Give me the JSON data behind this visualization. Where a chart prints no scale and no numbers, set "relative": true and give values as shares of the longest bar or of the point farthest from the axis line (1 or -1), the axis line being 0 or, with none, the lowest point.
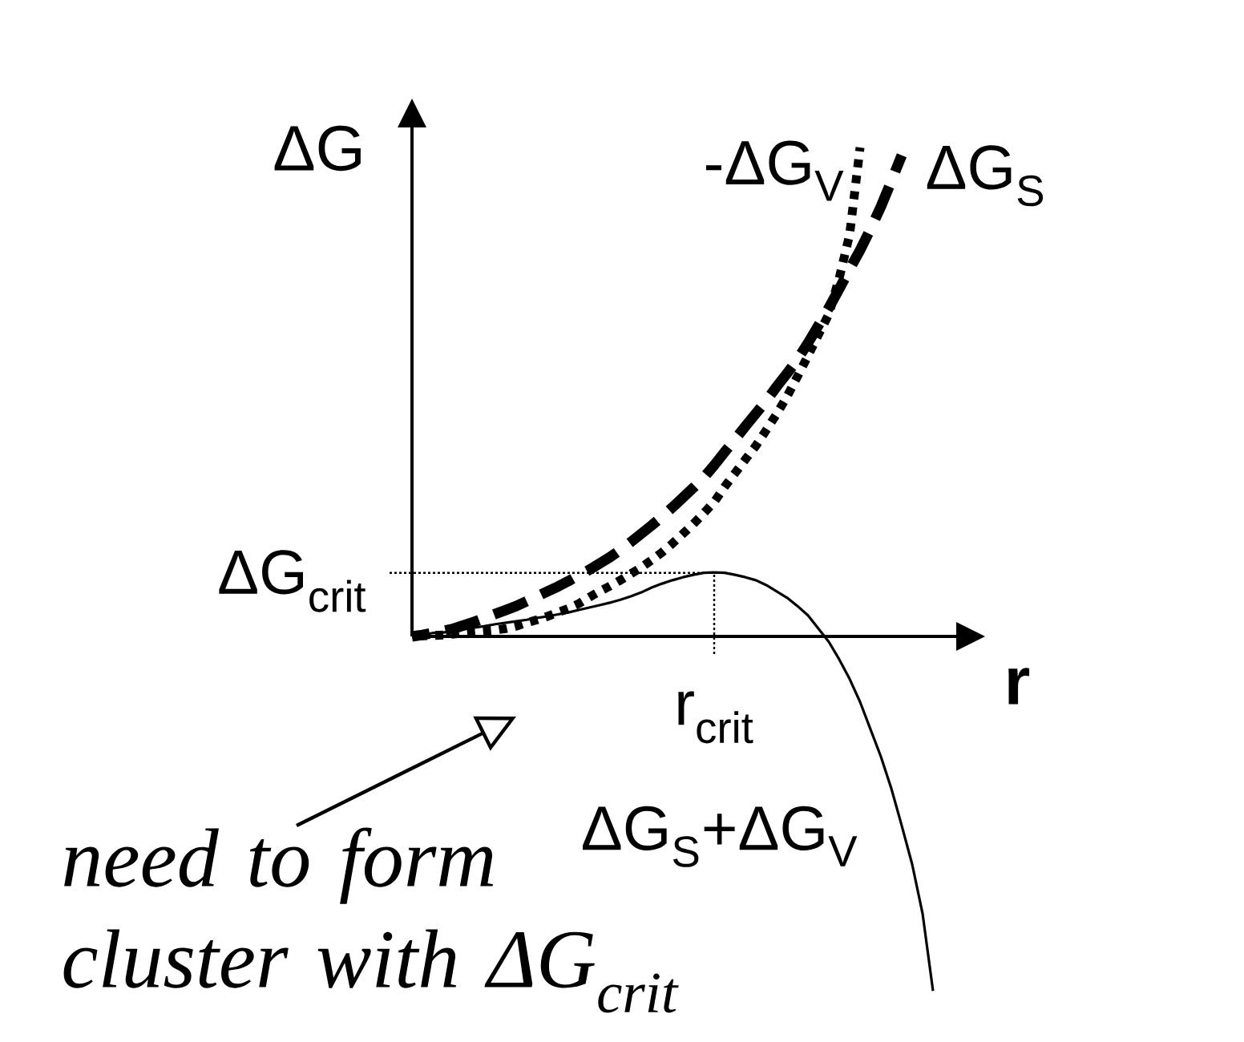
{
  "chart_data": {
    "type": "line",
    "relative": true,
    "ylabel": "ΔG",
    "xlabel": "r",
    "marker": "none",
    "categories": [
      null,
      null,
      null,
      null,
      null,
      null,
      null,
      null,
      null,
      null,
      null,
      null,
      null,
      null,
      null,
      null,
      null,
      null,
      null,
      null,
      null,
      null,
      null,
      null,
      null,
      null,
      null,
      null,
      null,
      null,
      null,
      null,
      null,
      null,
      null,
      null,
      null,
      null,
      null,
      null,
      null,
      null,
      null,
      null,
      null,
      null,
      null,
      null,
      null,
      null,
      null
    ],
    "series": [
      {
        "name": "-ΔG$_{V}$",
        "color": "#000000",
        "line_style": "dotted",
        "values": [
          0,
          0.001,
          0.002,
          0.003,
          0.005,
          0.007,
          0.009,
          0.011,
          0.013,
          0.016,
          0.021,
          0.028,
          0.034,
          0.041,
          0.049,
          0.057,
          0.067,
          0.08,
          0.092,
          0.103,
          0.115,
          0.128,
          0.141,
          0.156,
          0.172,
          0.19,
          0.21,
          0.23,
          0.252,
          0.275,
          0.306,
          0.334,
          0.362,
          0.39,
          0.422,
          0.455,
          0.491,
          0.532,
          0.574,
          0.617,
          0.659,
          0.733,
          0.822,
          1,
          null,
          null,
          null,
          null,
          null,
          null,
          null
        ]
      },
      {
        "name": "ΔG$_{S}$",
        "color": "#000000",
        "line_style": "dashed",
        "values": [
          0,
          0.003,
          0.007,
          0.011,
          0.016,
          0.023,
          0.03,
          0.038,
          0.046,
          0.054,
          0.062,
          0.072,
          0.082,
          0.092,
          0.102,
          0.113,
          0.125,
          0.136,
          0.149,
          0.162,
          0.177,
          0.193,
          0.21,
          0.227,
          0.245,
          0.264,
          0.284,
          0.304,
          0.325,
          0.35,
          0.377,
          0.403,
          0.43,
          0.456,
          0.482,
          0.511,
          0.538,
          0.567,
          0.6,
          0.636,
          0.672,
          0.711,
          0.751,
          0.79,
          0.833,
          0.879,
          0.931,
          0.984,
          null,
          null,
          null
        ]
      },
      {
        "name": "ΔG$_{S}$+ΔG$_{V}$",
        "color": "#000000",
        "line_style": "solid",
        "values": [
          0,
          0.003,
          0.007,
          0.008,
          0.011,
          0.015,
          0.018,
          0.021,
          0.025,
          0.028,
          0.031,
          0.034,
          0.038,
          0.041,
          0.045,
          0.049,
          0.054,
          0.059,
          0.064,
          0.069,
          0.075,
          0.082,
          0.09,
          0.1,
          0.108,
          0.115,
          0.121,
          0.126,
          0.13,
          0.131,
          0.13,
          0.126,
          0.121,
          0.115,
          0.105,
          0.092,
          0.079,
          0.062,
          0.043,
          0.016,
          -0.011,
          -0.047,
          -0.087,
          -0.134,
          -0.19,
          -0.246,
          -0.311,
          -0.387,
          -0.466,
          -0.567,
          -0.725
        ]
      }
    ],
    "ref_lines": [
      {
        "axis": "y",
        "value": 0.13,
        "label": "ΔG$_{crit}$",
        "line_style": "dotted",
        "color": "#000000"
      }
    ],
    "annotations": [
      "r$_{crit}$",
      "need to form cluster with ΔG$_{crit}$"
    ]
  }
}
